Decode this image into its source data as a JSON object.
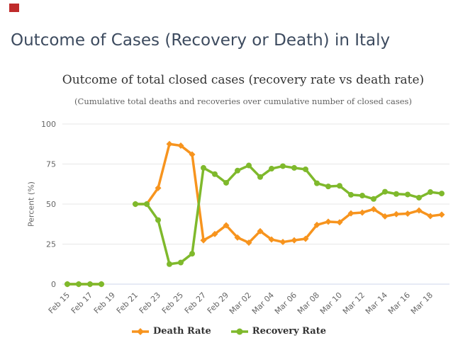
{
  "page": {
    "title": "Outcome of Cases (Recovery or Death) in Italy",
    "top_marker_color": "#bf2b2b"
  },
  "chart_data": {
    "type": "line",
    "title": "Outcome of total closed cases (recovery rate vs death rate)",
    "subtitle": "(Cumulative total deaths and recoveries over cumulative number of closed cases)",
    "xlabel": "",
    "ylabel": "Percent (%)",
    "ylim": [
      0,
      100
    ],
    "y_ticks": [
      0,
      25,
      50,
      75,
      100
    ],
    "grid": true,
    "legend_position": "bottom",
    "x": [
      "Feb 15",
      "Feb 16",
      "Feb 17",
      "Feb 18",
      "Feb 19",
      "Feb 20",
      "Feb 21",
      "Feb 22",
      "Feb 23",
      "Feb 24",
      "Feb 25",
      "Feb 26",
      "Feb 27",
      "Feb 28",
      "Feb 29",
      "Mar 01",
      "Mar 02",
      "Mar 03",
      "Mar 04",
      "Mar 05",
      "Mar 06",
      "Mar 07",
      "Mar 08",
      "Mar 09",
      "Mar 10",
      "Mar 11",
      "Mar 12",
      "Mar 13",
      "Mar 14",
      "Mar 15",
      "Mar 16",
      "Mar 17",
      "Mar 18",
      "Mar 19"
    ],
    "x_tick_labels": [
      "Feb 15",
      "Feb 17",
      "Feb 19",
      "Feb 21",
      "Feb 23",
      "Feb 25",
      "Feb 27",
      "Feb 29",
      "Mar 02",
      "Mar 04",
      "Mar 06",
      "Mar 08",
      "Mar 10",
      "Mar 12",
      "Mar 14",
      "Mar 16",
      "Mar 18"
    ],
    "series": [
      {
        "name": "Death Rate",
        "color": "#F7941E",
        "marker": "diamond",
        "values": [
          0,
          0,
          0,
          0,
          null,
          null,
          50,
          50,
          60,
          87.5,
          86.5,
          81,
          27.4,
          31.3,
          36.7,
          29.1,
          25.9,
          33.1,
          27.9,
          26.3,
          27.4,
          28.3,
          37.0,
          39.0,
          38.6,
          44.2,
          44.7,
          46.8,
          42.3,
          43.7,
          44.0,
          46.0,
          42.5,
          43.4
        ]
      },
      {
        "name": "Recovery Rate",
        "color": "#7FB92C",
        "marker": "circle",
        "values": [
          0,
          0,
          0,
          0,
          null,
          null,
          50,
          50,
          40,
          12.5,
          13.5,
          19,
          72.6,
          68.7,
          63.3,
          70.9,
          74.1,
          66.9,
          72.1,
          73.7,
          72.6,
          71.7,
          63.0,
          61.0,
          61.4,
          55.8,
          55.3,
          53.2,
          57.7,
          56.3,
          56.0,
          54.0,
          57.5,
          56.6
        ]
      }
    ],
    "colors": {
      "gridline": "#e7e7e7",
      "axis_line": "#ccd6eb",
      "tick_label": "#666666"
    }
  }
}
